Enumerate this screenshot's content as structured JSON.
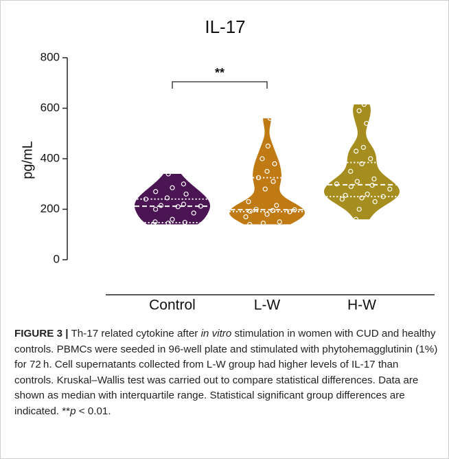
{
  "chart_data": {
    "type": "violin",
    "title": "IL-17",
    "ylabel": "pg/mL",
    "categories": [
      "Control",
      "L-W",
      "H-W"
    ],
    "ylim": [
      0,
      800
    ],
    "yticks": [
      0,
      200,
      400,
      600,
      800
    ],
    "groups": [
      {
        "color": "#4a1552",
        "median": 212,
        "q1": 147,
        "q3": 240,
        "points": [
          140,
          145,
          148,
          150,
          160,
          185,
          200,
          210,
          212,
          215,
          220,
          240,
          245,
          260,
          270,
          285,
          300,
          340
        ]
      },
      {
        "color": "#c07a14",
        "median": 198,
        "q1": 190,
        "q3": 325,
        "points": [
          140,
          145,
          150,
          170,
          180,
          190,
          192,
          195,
          198,
          200,
          215,
          230,
          280,
          310,
          325,
          350,
          380,
          400,
          450,
          560
        ]
      },
      {
        "color": "#a68d1f",
        "median": 297,
        "q1": 250,
        "q3": 385,
        "points": [
          160,
          200,
          230,
          240,
          245,
          250,
          255,
          260,
          280,
          290,
          295,
          300,
          310,
          320,
          350,
          380,
          400,
          430,
          445,
          540,
          590,
          615
        ]
      }
    ],
    "annotations": [
      {
        "text": "**",
        "between": [
          0,
          1
        ]
      }
    ]
  },
  "caption": {
    "label": "FIGURE 3 |",
    "segments": [
      " Th-17 related cytokine after ",
      "in vitro",
      " stimulation in women with CUD and healthy controls. PBMCs were seeded in 96-well plate and stimulated with phytohemagglutinin (1%) for 72 h. Cell supernatants collected from L-W group had higher levels of IL-17 than controls. Kruskal–Wallis test was carried out to compare statistical differences. Data are shown as median with interquartile range. Statistical significant group differences are indicated. ",
      "**",
      "p",
      " < 0.01."
    ]
  }
}
